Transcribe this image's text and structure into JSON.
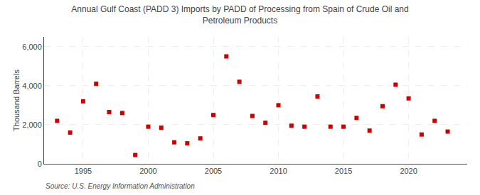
{
  "chart_data": {
    "type": "scatter",
    "title": "Annual Gulf Coast (PADD 3) Imports by PADD of Processing from Spain of Crude Oil and\nPetroleum Products",
    "ylabel": "Thousand Barrels",
    "annotations": [
      "Source: U.S. Energy Information Administration"
    ],
    "x": [
      1993,
      1994,
      1995,
      1996,
      1997,
      1998,
      1999,
      2000,
      2001,
      2002,
      2003,
      2004,
      2005,
      2006,
      2007,
      2008,
      2009,
      2010,
      2011,
      2012,
      2013,
      2014,
      2015,
      2016,
      2017,
      2018,
      2019,
      2020,
      2021,
      2022,
      2023
    ],
    "values": [
      2200,
      1600,
      3200,
      4100,
      2650,
      2600,
      450,
      1900,
      1850,
      1100,
      1050,
      1300,
      2500,
      5500,
      4200,
      2450,
      2100,
      3000,
      1950,
      1900,
      3450,
      1900,
      1900,
      2350,
      1700,
      2950,
      4050,
      3350,
      1500,
      2200,
      1650
    ],
    "color": "#cc0000",
    "marker": "square",
    "xlim": [
      1992,
      2024.5
    ],
    "xticks": [
      1995,
      2000,
      2005,
      2010,
      2015,
      2020
    ],
    "ylim": [
      0,
      6500
    ],
    "yticks": [
      0,
      {
        "value": 2000,
        "label": "2,000"
      },
      {
        "value": 4000,
        "label": "4,000"
      },
      {
        "value": 6000,
        "label": "6,000"
      }
    ],
    "grid": true
  }
}
